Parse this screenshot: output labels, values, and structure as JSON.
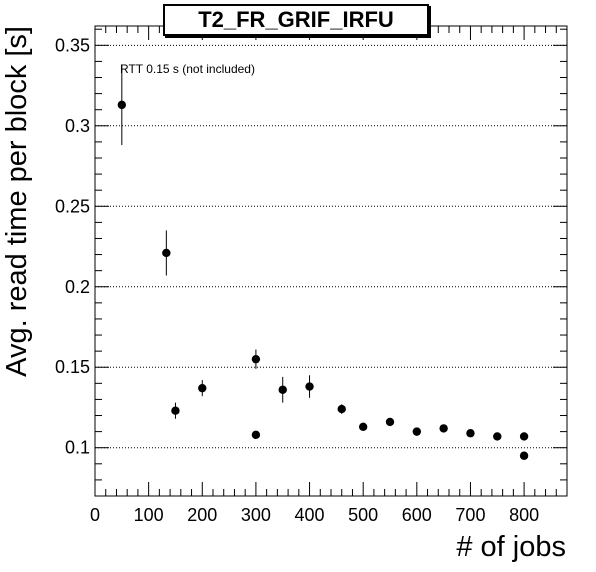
{
  "chart_data": {
    "type": "scatter",
    "title": "T2_FR_GRIF_IRFU",
    "xlabel": "# of jobs",
    "ylabel": "Avg. read time per block [s]",
    "annotation": "RTT 0.15 s (not included)",
    "xlim": [
      0,
      880
    ],
    "ylim": [
      0.07,
      0.362
    ],
    "x_ticks": [
      0,
      100,
      200,
      300,
      400,
      500,
      600,
      700,
      800
    ],
    "x_tick_labels": [
      "0",
      "100",
      "200",
      "300",
      "400",
      "500",
      "600",
      "700",
      "800"
    ],
    "y_ticks": [
      0.1,
      0.15,
      0.2,
      0.25,
      0.3,
      0.35
    ],
    "y_tick_labels": [
      "0.1",
      "0.15",
      "0.2",
      "0.25",
      "0.3",
      "0.35"
    ],
    "grid": "horizontal-dotted",
    "points": [
      {
        "x": 50,
        "y": 0.313,
        "err": 0.025
      },
      {
        "x": 133,
        "y": 0.221,
        "err": 0.014
      },
      {
        "x": 150,
        "y": 0.123,
        "err": 0.005
      },
      {
        "x": 200,
        "y": 0.137,
        "err": 0.005
      },
      {
        "x": 300,
        "y": 0.155,
        "err": 0.006
      },
      {
        "x": 300,
        "y": 0.108,
        "err": 0.002
      },
      {
        "x": 350,
        "y": 0.136,
        "err": 0.008
      },
      {
        "x": 400,
        "y": 0.138,
        "err": 0.007
      },
      {
        "x": 460,
        "y": 0.124,
        "err": 0.003
      },
      {
        "x": 500,
        "y": 0.113,
        "err": 0.002
      },
      {
        "x": 550,
        "y": 0.116,
        "err": 0.002
      },
      {
        "x": 600,
        "y": 0.11,
        "err": 0.002
      },
      {
        "x": 650,
        "y": 0.112,
        "err": 0.002
      },
      {
        "x": 700,
        "y": 0.109,
        "err": 0.002
      },
      {
        "x": 750,
        "y": 0.107,
        "err": 0.002
      },
      {
        "x": 800,
        "y": 0.107,
        "err": 0.002
      },
      {
        "x": 800,
        "y": 0.095,
        "err": 0.002
      }
    ],
    "marker_color": "#000000"
  }
}
